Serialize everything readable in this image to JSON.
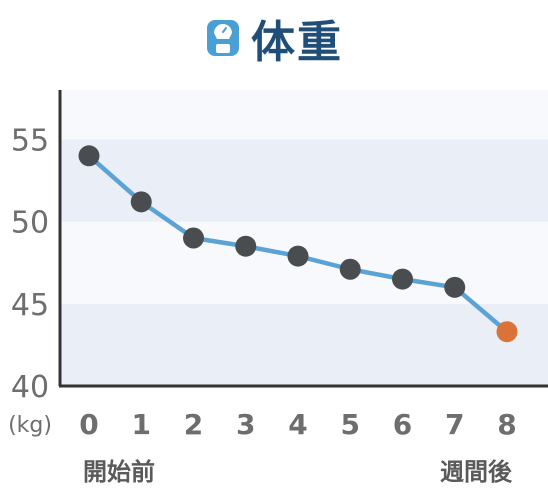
{
  "title": {
    "text": "体重",
    "icon": "scale-icon",
    "color": "#1f4e79",
    "icon_color": "#4a9fd4"
  },
  "notes": {
    "start_label": "開始前",
    "end_label": "週間後"
  },
  "chart_data": {
    "type": "line",
    "title": "体重",
    "ylabel": "(kg)",
    "xlabel": "",
    "x": [
      0,
      1,
      2,
      3,
      4,
      5,
      6,
      7,
      8
    ],
    "categories": [
      "0",
      "1",
      "2",
      "3",
      "4",
      "5",
      "6",
      "7",
      "8"
    ],
    "series": [
      {
        "values": [
          54.0,
          51.2,
          49.0,
          48.5,
          47.9,
          47.1,
          46.5,
          46.0,
          43.3
        ]
      }
    ],
    "ylim": [
      40,
      58
    ],
    "yticks": [
      40,
      45,
      50,
      55
    ],
    "grid": "horizontal bands",
    "colors": {
      "line": "#5aa3d4",
      "point": "#4a4d50",
      "last_point": "#d9733a",
      "band": "#eaeef6",
      "axis": "#333333"
    }
  }
}
